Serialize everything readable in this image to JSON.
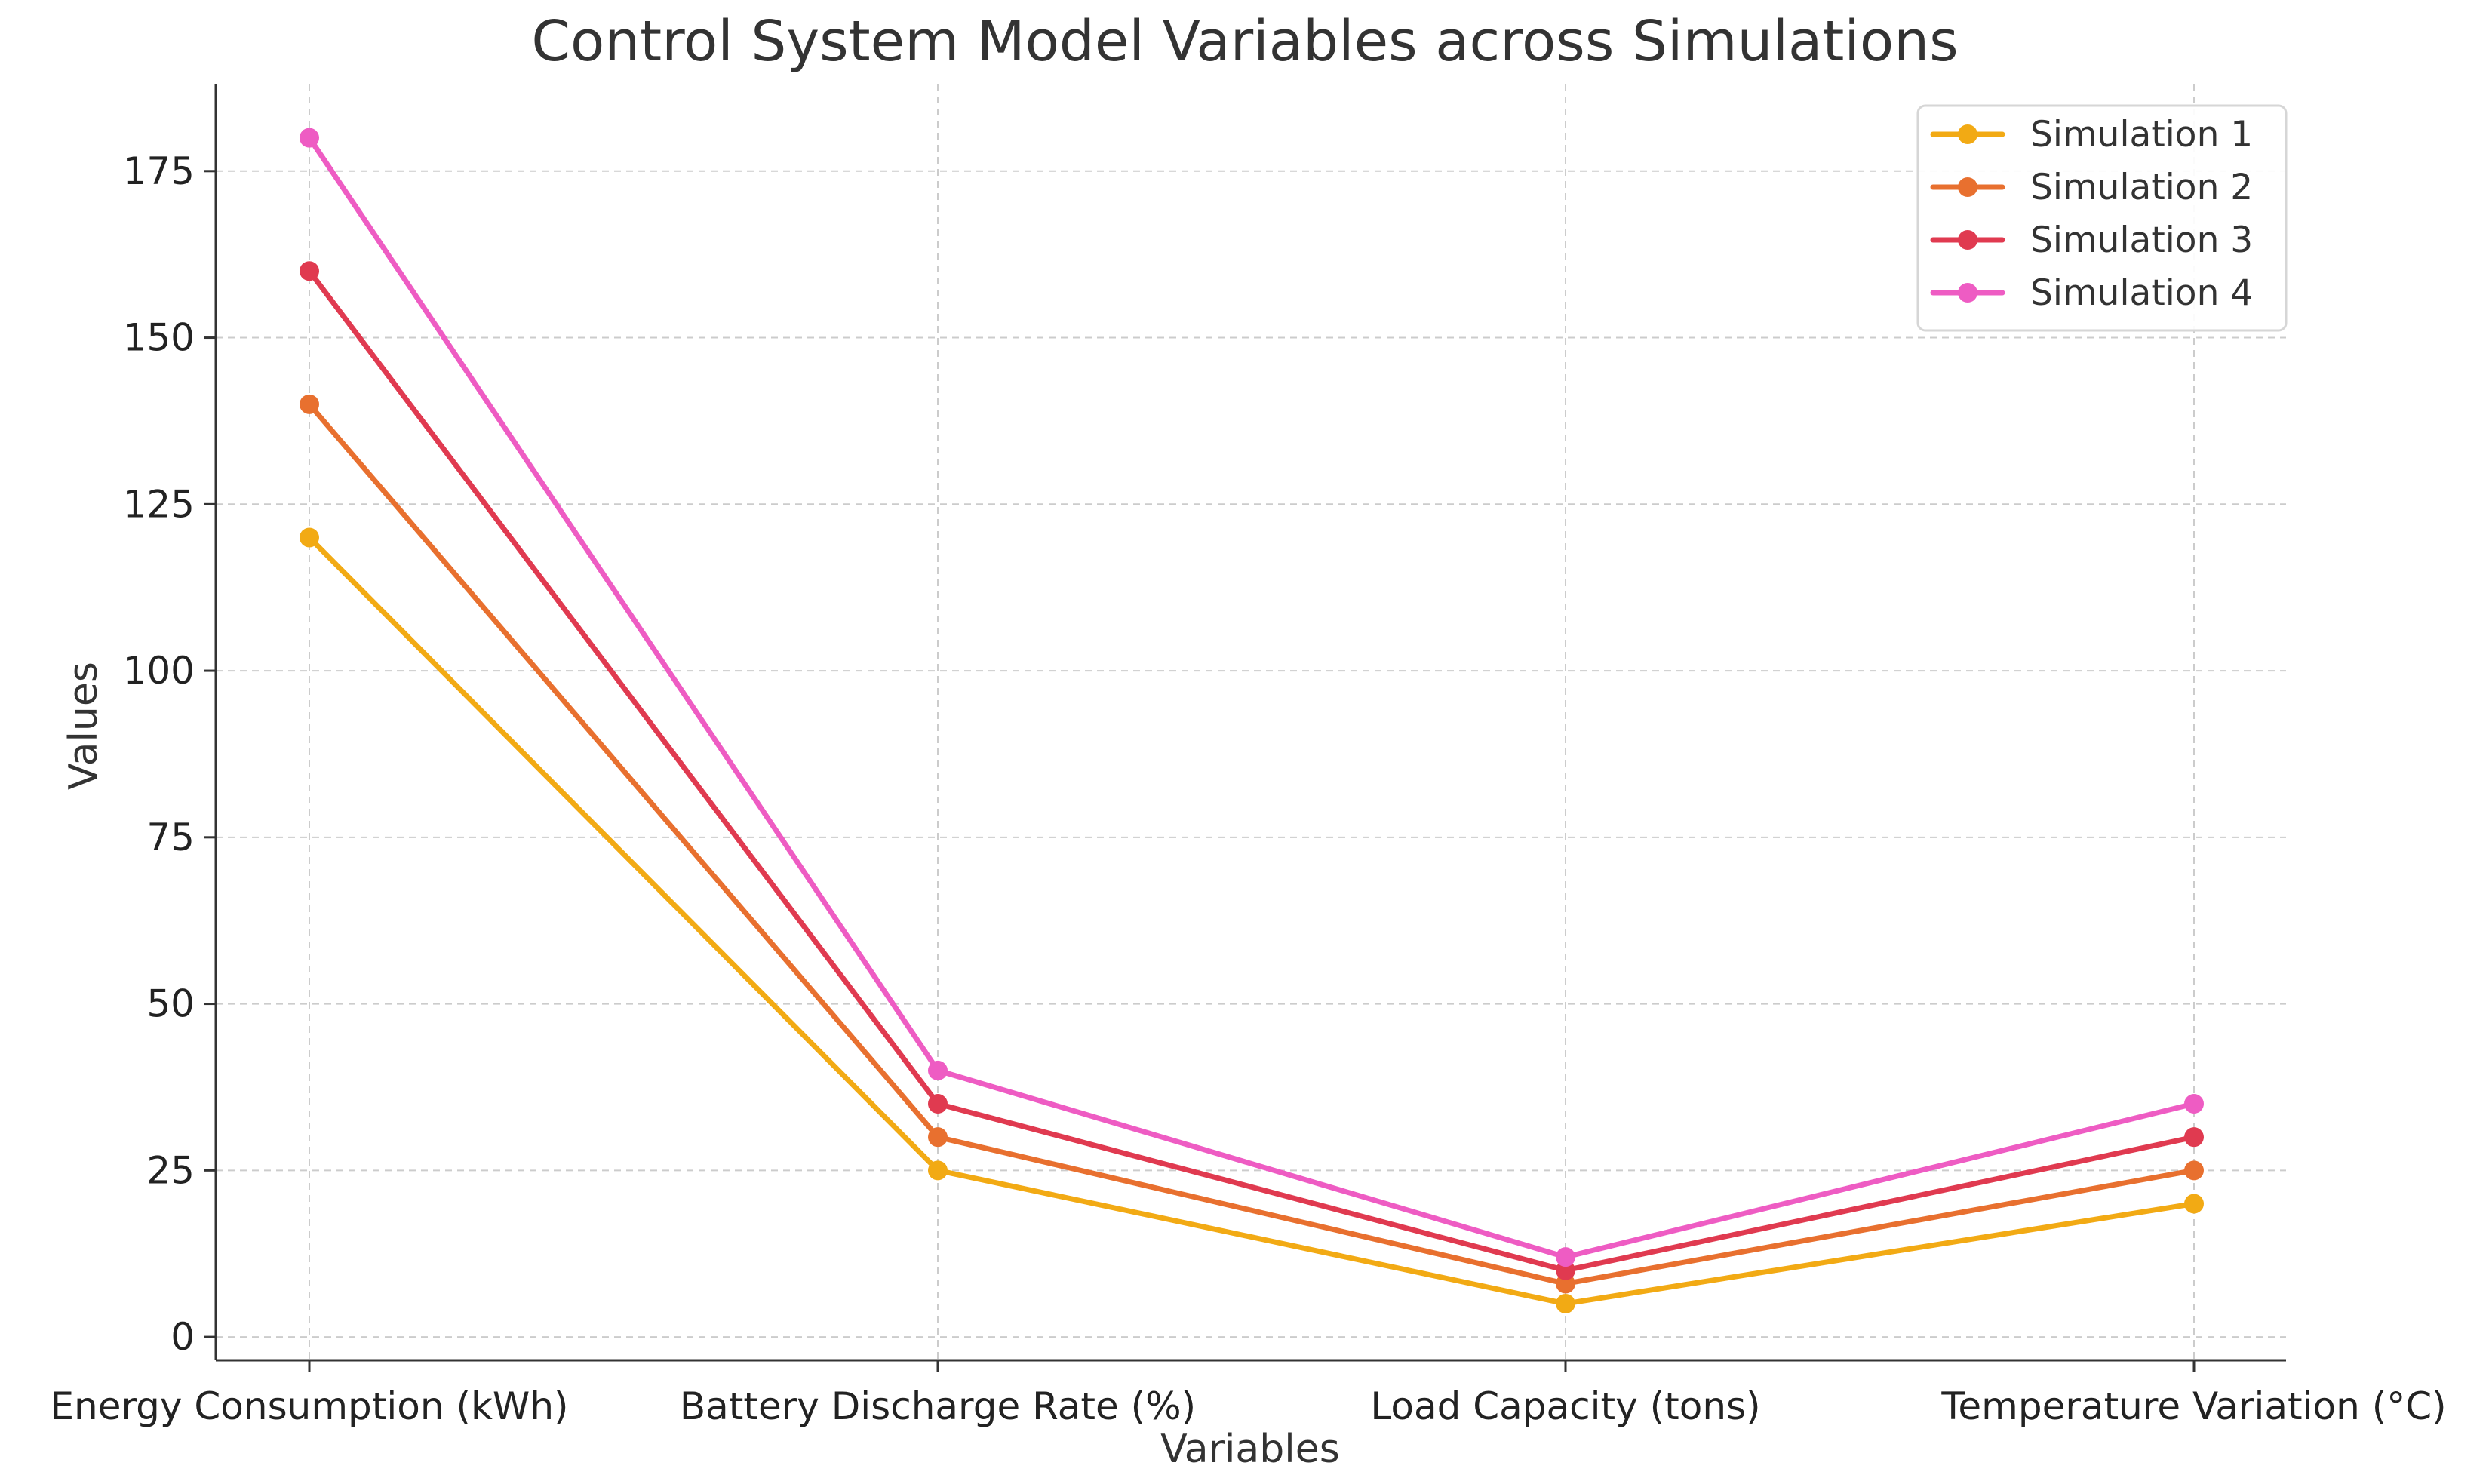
{
  "chart_data": {
    "type": "line",
    "title": "Control System Model Variables across Simulations",
    "xlabel": "Variables",
    "ylabel": "Values",
    "categories": [
      "Energy Consumption (kWh)",
      "Battery Discharge Rate (%)",
      "Load Capacity (tons)",
      "Temperature Variation (°C)"
    ],
    "ylim": [
      -3.5,
      188
    ],
    "yticks": [
      0,
      25,
      50,
      75,
      100,
      125,
      150,
      175
    ],
    "grid": true,
    "legend_position": "top-right",
    "series": [
      {
        "name": "Simulation 1",
        "color": "#F2AA14",
        "values": [
          120,
          25,
          5,
          20
        ]
      },
      {
        "name": "Simulation 2",
        "color": "#E8702F",
        "values": [
          140,
          30,
          8,
          25
        ]
      },
      {
        "name": "Simulation 3",
        "color": "#E03A50",
        "values": [
          160,
          35,
          10,
          30
        ]
      },
      {
        "name": "Simulation 4",
        "color": "#EE5CC3",
        "values": [
          180,
          40,
          12,
          35
        ]
      }
    ]
  }
}
